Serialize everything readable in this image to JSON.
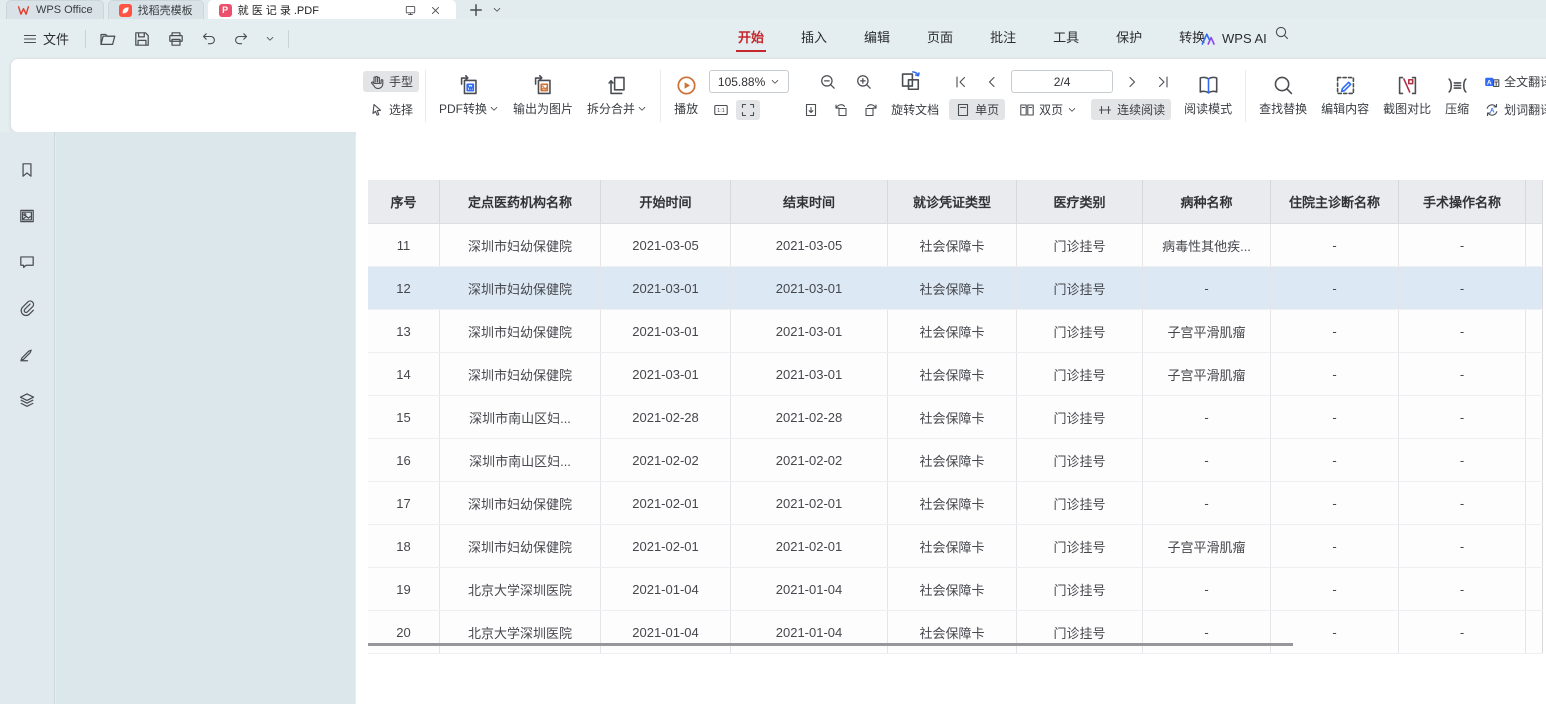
{
  "app": {
    "window_tabs": [
      {
        "label": "WPS Office"
      },
      {
        "label": "找稻壳模板"
      },
      {
        "label": "就 医 记 录 .PDF",
        "active": true
      }
    ]
  },
  "menubar": {
    "file_label": "文件",
    "menus": [
      "开始",
      "插入",
      "编辑",
      "页面",
      "批注",
      "工具",
      "保护",
      "转换"
    ],
    "active_menu": "开始",
    "wps_ai_label": "WPS AI"
  },
  "toolbar": {
    "hand": "手型",
    "select": "选择",
    "pdf_convert": "PDF转换",
    "export_image": "输出为图片",
    "split_merge": "拆分合并",
    "play": "播放",
    "zoom_level": "105.88%",
    "one_to_one": "1:1",
    "page_indicator": "2/4",
    "rotate_doc": "旋转文档",
    "single_page": "单页",
    "double_page": "双页",
    "continuous_read": "连续阅读",
    "read_mode": "阅读模式",
    "find_replace": "查找替换",
    "edit_content": "编辑内容",
    "screenshot_compare": "截图对比",
    "compress": "压缩",
    "full_translate": "全文翻译",
    "word_translate": "划词翻译"
  },
  "sidebar": {
    "icons": [
      "bookmark",
      "thumbnail",
      "comment",
      "attachment",
      "signature",
      "layers"
    ]
  },
  "table": {
    "headers": [
      "序号",
      "定点医药机构名称",
      "开始时间",
      "结束时间",
      "就诊凭证类型",
      "医疗类别",
      "病种名称",
      "住院主诊断名称",
      "手术操作名称"
    ],
    "selected_row_index": 1,
    "rows": [
      [
        "11",
        "深圳市妇幼保健院",
        "2021-03-05",
        "2021-03-05",
        "社会保障卡",
        "门诊挂号",
        "病毒性其他疾...",
        "-",
        "-"
      ],
      [
        "12",
        "深圳市妇幼保健院",
        "2021-03-01",
        "2021-03-01",
        "社会保障卡",
        "门诊挂号",
        "-",
        "-",
        "-"
      ],
      [
        "13",
        "深圳市妇幼保健院",
        "2021-03-01",
        "2021-03-01",
        "社会保障卡",
        "门诊挂号",
        "子宫平滑肌瘤",
        "-",
        "-"
      ],
      [
        "14",
        "深圳市妇幼保健院",
        "2021-03-01",
        "2021-03-01",
        "社会保障卡",
        "门诊挂号",
        "子宫平滑肌瘤",
        "-",
        "-"
      ],
      [
        "15",
        "深圳市南山区妇...",
        "2021-02-28",
        "2021-02-28",
        "社会保障卡",
        "门诊挂号",
        "-",
        "-",
        "-"
      ],
      [
        "16",
        "深圳市南山区妇...",
        "2021-02-02",
        "2021-02-02",
        "社会保障卡",
        "门诊挂号",
        "-",
        "-",
        "-"
      ],
      [
        "17",
        "深圳市妇幼保健院",
        "2021-02-01",
        "2021-02-01",
        "社会保障卡",
        "门诊挂号",
        "-",
        "-",
        "-"
      ],
      [
        "18",
        "深圳市妇幼保健院",
        "2021-02-01",
        "2021-02-01",
        "社会保障卡",
        "门诊挂号",
        "子宫平滑肌瘤",
        "-",
        "-"
      ],
      [
        "19",
        "北京大学深圳医院",
        "2021-01-04",
        "2021-01-04",
        "社会保障卡",
        "门诊挂号",
        "-",
        "-",
        "-"
      ],
      [
        "20",
        "北京大学深圳医院",
        "2021-01-04",
        "2021-01-04",
        "社会保障卡",
        "门诊挂号",
        "-",
        "-",
        "-"
      ]
    ]
  },
  "colors": {
    "accent_red": "#c5272d",
    "wps_logo_red": "#e34033",
    "docer_red": "#ff5242",
    "pdf_pink": "#ec4e6b",
    "ai_blue": "#2f6bf6",
    "ai_purple": "#8a46f0",
    "play_orange": "#cd7136",
    "selected_row": "#dce8f4"
  }
}
